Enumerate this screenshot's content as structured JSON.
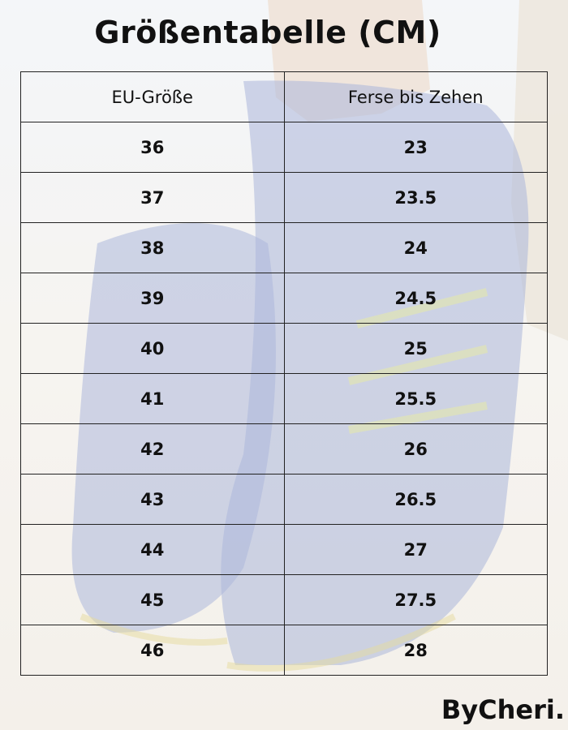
{
  "header": {
    "title": "Größentabelle (CM)"
  },
  "table": {
    "columns": [
      "EU-Größe",
      "Ferse bis Zehen"
    ],
    "rows": [
      [
        "36",
        "23"
      ],
      [
        "37",
        "23.5"
      ],
      [
        "38",
        "24"
      ],
      [
        "39",
        "24.5"
      ],
      [
        "40",
        "25"
      ],
      [
        "41",
        "25.5"
      ],
      [
        "42",
        "26"
      ],
      [
        "43",
        "26.5"
      ],
      [
        "44",
        "27"
      ],
      [
        "45",
        "27.5"
      ],
      [
        "46",
        "28"
      ]
    ]
  },
  "footer": {
    "brand": "ByCheri."
  }
}
